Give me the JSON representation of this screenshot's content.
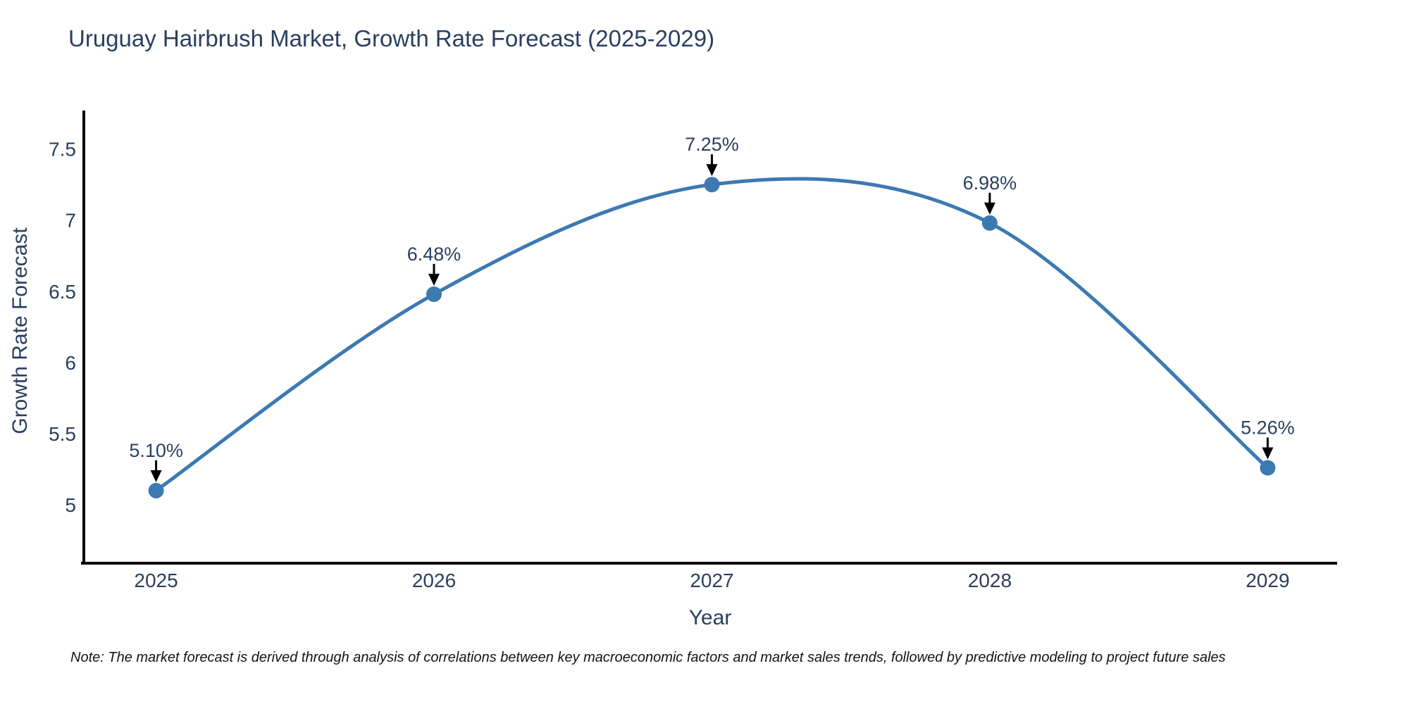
{
  "chart_data": {
    "type": "line",
    "title": "Uruguay Hairbrush Market, Growth Rate Forecast (2025-2029)",
    "xlabel": "Year",
    "ylabel": "Growth Rate Forecast",
    "x": [
      2025,
      2026,
      2027,
      2028,
      2029
    ],
    "xtick_labels": [
      "2025",
      "2026",
      "2027",
      "2028",
      "2029"
    ],
    "values": [
      5.1,
      6.48,
      7.25,
      6.98,
      5.26
    ],
    "point_labels": [
      "5.10%",
      "6.48%",
      "7.25%",
      "6.98%",
      "5.26%"
    ],
    "yticks": [
      5,
      5.5,
      6,
      6.5,
      7,
      7.5
    ],
    "ytick_labels": [
      "5",
      "5.5",
      "6",
      "6.5",
      "7",
      "7.5"
    ],
    "xlim": [
      2024.74,
      2029.25
    ],
    "ylim": [
      4.59,
      7.78
    ],
    "line_shape": "spline",
    "grid": false,
    "legend": false,
    "note": "Note: The market forecast is derived through analysis of correlations between key macroeconomic factors and market sales trends, followed by predictive modeling to project future sales",
    "colors": {
      "line": "#3d79b2",
      "marker": "#3d79b2",
      "axis": "#000000",
      "text": "#2a3f5f",
      "annotation_arrow": "#000000",
      "background": "#ffffff"
    }
  }
}
